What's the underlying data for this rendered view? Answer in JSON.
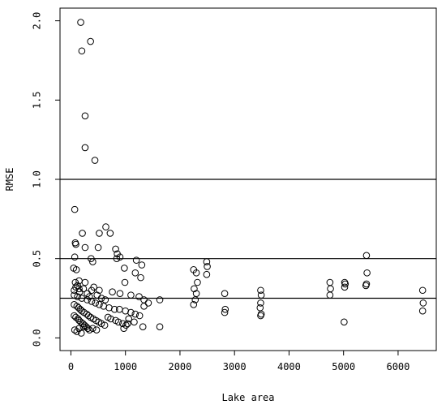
{
  "chart_data": {
    "type": "scatter",
    "title": "",
    "xlabel": "Lake area",
    "ylabel": "RMSE",
    "xlim": [
      -200,
      6700
    ],
    "ylim": [
      -0.08,
      2.08
    ],
    "xticks": [
      0,
      1000,
      2000,
      3000,
      4000,
      5000,
      6000
    ],
    "yticks": [
      0.0,
      0.5,
      1.0,
      1.5,
      2.0
    ],
    "xtick_labels": [
      "0",
      "1000",
      "2000",
      "3000",
      "4000",
      "5000",
      "6000"
    ],
    "ytick_labels": [
      "0.0",
      "0.5",
      "1.0",
      "1.5",
      "2.0"
    ],
    "grid": false,
    "reference_lines": [
      {
        "axis": "y",
        "value": 1.0
      },
      {
        "axis": "y",
        "value": 0.5
      },
      {
        "axis": "y",
        "value": 0.25
      }
    ],
    "series": [
      {
        "points": [
          [
            180,
            1.99
          ],
          [
            360,
            1.87
          ],
          [
            200,
            1.81
          ],
          [
            260,
            1.4
          ],
          [
            260,
            1.2
          ],
          [
            440,
            1.12
          ],
          [
            70,
            0.81
          ],
          [
            640,
            0.7
          ],
          [
            720,
            0.66
          ],
          [
            210,
            0.66
          ],
          [
            520,
            0.66
          ],
          [
            80,
            0.6
          ],
          [
            90,
            0.59
          ],
          [
            260,
            0.57
          ],
          [
            500,
            0.57
          ],
          [
            820,
            0.56
          ],
          [
            850,
            0.53
          ],
          [
            900,
            0.51
          ],
          [
            840,
            0.5
          ],
          [
            70,
            0.51
          ],
          [
            370,
            0.5
          ],
          [
            400,
            0.48
          ],
          [
            1200,
            0.49
          ],
          [
            1300,
            0.46
          ],
          [
            980,
            0.44
          ],
          [
            1180,
            0.41
          ],
          [
            1280,
            0.38
          ],
          [
            50,
            0.44
          ],
          [
            100,
            0.43
          ],
          [
            150,
            0.36
          ],
          [
            260,
            0.35
          ],
          [
            420,
            0.32
          ],
          [
            990,
            0.35
          ],
          [
            90,
            0.32
          ],
          [
            150,
            0.31
          ],
          [
            380,
            0.3
          ],
          [
            520,
            0.3
          ],
          [
            760,
            0.29
          ],
          [
            900,
            0.28
          ],
          [
            1100,
            0.27
          ],
          [
            1250,
            0.26
          ],
          [
            1340,
            0.24
          ],
          [
            1420,
            0.22
          ],
          [
            1630,
            0.24
          ],
          [
            60,
            0.27
          ],
          [
            120,
            0.26
          ],
          [
            200,
            0.25
          ],
          [
            300,
            0.24
          ],
          [
            380,
            0.23
          ],
          [
            450,
            0.22
          ],
          [
            520,
            0.21
          ],
          [
            600,
            0.2
          ],
          [
            700,
            0.19
          ],
          [
            800,
            0.18
          ],
          [
            890,
            0.18
          ],
          [
            1000,
            0.17
          ],
          [
            1100,
            0.16
          ],
          [
            1180,
            0.15
          ],
          [
            1260,
            0.14
          ],
          [
            1340,
            0.2
          ],
          [
            60,
            0.21
          ],
          [
            110,
            0.2
          ],
          [
            140,
            0.19
          ],
          [
            170,
            0.18
          ],
          [
            200,
            0.17
          ],
          [
            240,
            0.16
          ],
          [
            290,
            0.15
          ],
          [
            320,
            0.14
          ],
          [
            360,
            0.13
          ],
          [
            410,
            0.12
          ],
          [
            460,
            0.11
          ],
          [
            510,
            0.1
          ],
          [
            560,
            0.09
          ],
          [
            620,
            0.08
          ],
          [
            680,
            0.13
          ],
          [
            730,
            0.12
          ],
          [
            820,
            0.11
          ],
          [
            870,
            0.1
          ],
          [
            950,
            0.09
          ],
          [
            1010,
            0.08
          ],
          [
            1060,
            0.12
          ],
          [
            1160,
            0.1
          ],
          [
            1320,
            0.07
          ],
          [
            1630,
            0.07
          ],
          [
            60,
            0.14
          ],
          [
            90,
            0.13
          ],
          [
            130,
            0.12
          ],
          [
            150,
            0.11
          ],
          [
            180,
            0.1
          ],
          [
            220,
            0.09
          ],
          [
            250,
            0.08
          ],
          [
            280,
            0.07
          ],
          [
            310,
            0.06
          ],
          [
            340,
            0.05
          ],
          [
            70,
            0.05
          ],
          [
            110,
            0.04
          ],
          [
            150,
            0.06
          ],
          [
            190,
            0.03
          ],
          [
            230,
            0.07
          ],
          [
            400,
            0.06
          ],
          [
            470,
            0.05
          ],
          [
            970,
            0.06
          ],
          [
            1040,
            0.09
          ],
          [
            60,
            0.3
          ],
          [
            80,
            0.35
          ],
          [
            120,
            0.33
          ],
          [
            160,
            0.29
          ],
          [
            230,
            0.31
          ],
          [
            300,
            0.28
          ],
          [
            340,
            0.26
          ],
          [
            480,
            0.27
          ],
          [
            560,
            0.25
          ],
          [
            630,
            0.24
          ],
          [
            2250,
            0.43
          ],
          [
            2300,
            0.41
          ],
          [
            2320,
            0.35
          ],
          [
            2260,
            0.31
          ],
          [
            2300,
            0.28
          ],
          [
            2280,
            0.24
          ],
          [
            2250,
            0.21
          ],
          [
            2490,
            0.48
          ],
          [
            2500,
            0.45
          ],
          [
            2490,
            0.4
          ],
          [
            2820,
            0.28
          ],
          [
            2830,
            0.18
          ],
          [
            2820,
            0.16
          ],
          [
            3480,
            0.3
          ],
          [
            3490,
            0.27
          ],
          [
            3480,
            0.22
          ],
          [
            3470,
            0.19
          ],
          [
            3490,
            0.15
          ],
          [
            3480,
            0.14
          ],
          [
            4750,
            0.35
          ],
          [
            4760,
            0.31
          ],
          [
            4750,
            0.27
          ],
          [
            5020,
            0.35
          ],
          [
            5030,
            0.34
          ],
          [
            5020,
            0.32
          ],
          [
            5010,
            0.1
          ],
          [
            5420,
            0.52
          ],
          [
            5430,
            0.41
          ],
          [
            5420,
            0.34
          ],
          [
            5410,
            0.33
          ],
          [
            6450,
            0.3
          ],
          [
            6460,
            0.22
          ],
          [
            6450,
            0.17
          ]
        ]
      }
    ]
  }
}
